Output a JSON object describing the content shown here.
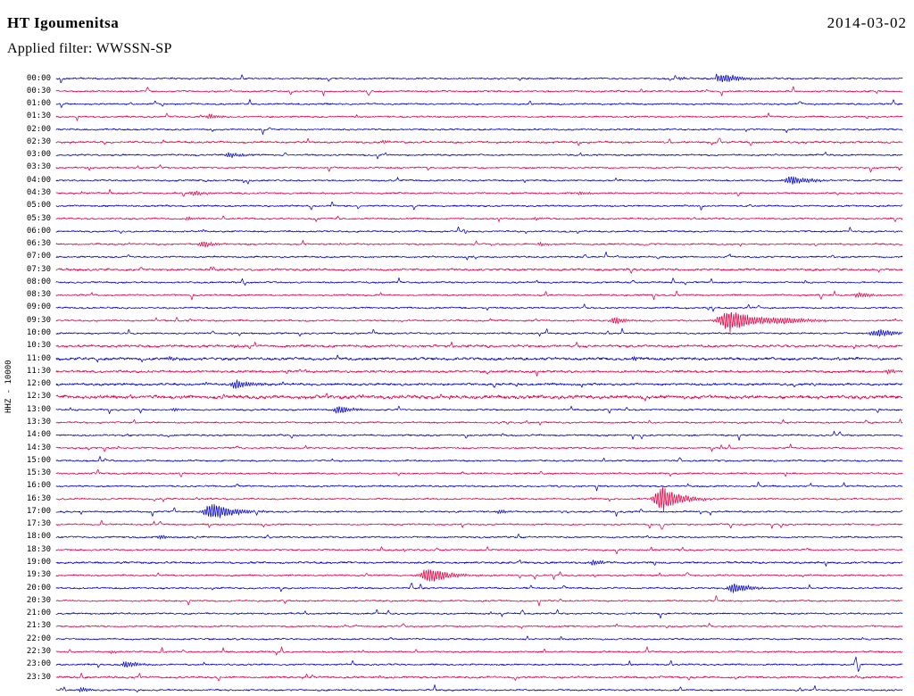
{
  "header": {
    "station": "HT Igoumenitsa",
    "date": "2014-03-02",
    "filter": "Applied filter: WWSSN-SP"
  },
  "axis": {
    "y_label": "HHZ - 10000"
  },
  "chart_data": {
    "type": "line",
    "subtype": "helicorder-seismogram",
    "title": "HT Igoumenitsa",
    "date": "2014-03-02",
    "filter": "WWSSN-SP",
    "channel": "HHZ",
    "gain_scale": 10000,
    "row_duration_minutes": 30,
    "x_range": [
      "00:00",
      "24:00"
    ],
    "colors": {
      "even": "#0000cd",
      "odd": "#e50045",
      "text": "#000000",
      "background": "#ffffff"
    },
    "layout": {
      "x0": 63,
      "x1": 1011,
      "y0": 88,
      "dy": 14.277,
      "legend": "none",
      "grid": false
    },
    "rows": [
      "00:00",
      "00:30",
      "01:00",
      "01:30",
      "02:00",
      "02:30",
      "03:00",
      "03:30",
      "04:00",
      "04:30",
      "05:00",
      "05:30",
      "06:00",
      "06:30",
      "07:00",
      "07:30",
      "08:00",
      "08:30",
      "09:00",
      "09:30",
      "10:00",
      "10:30",
      "11:00",
      "11:30",
      "12:00",
      "12:30",
      "13:00",
      "13:30",
      "14:00",
      "14:30",
      "15:00",
      "15:30",
      "16:00",
      "16:30",
      "17:00",
      "17:30",
      "18:00",
      "18:30",
      "19:00",
      "19:30",
      "20:00",
      "20:30",
      "21:00",
      "21:30",
      "22:00",
      "22:30",
      "23:00",
      "23:30",
      ""
    ],
    "noise_scale": {
      "02:30": 1.2,
      "07:30": 1.3,
      "10:30": 1.5,
      "11:00": 1.6,
      "11:30": 1.4,
      "12:00": 1.4,
      "12:30": 2.1,
      "19:00": 1.2,
      "23:30": 1.2
    },
    "events": [
      {
        "time": "00:00",
        "x": 0.788,
        "amp": 6,
        "w": 12,
        "type": "burst"
      },
      {
        "time": "00:00",
        "x": 0.737,
        "amp": 2,
        "w": 5,
        "type": "burst"
      },
      {
        "time": "00:30",
        "x": 0.108,
        "amp": 4,
        "type": "spike"
      },
      {
        "time": "00:30",
        "x": 0.369,
        "amp": -5,
        "type": "spike"
      },
      {
        "time": "01:00",
        "x": 0.879,
        "amp": 3,
        "type": "spike"
      },
      {
        "time": "01:30",
        "x": 0.182,
        "amp": 3,
        "w": 7,
        "type": "burst"
      },
      {
        "time": "02:00",
        "x": 0.253,
        "amp": 2.5,
        "type": "spike"
      },
      {
        "time": "02:30",
        "x": 0.387,
        "amp": 2.5,
        "w": 5,
        "type": "burst"
      },
      {
        "time": "02:30",
        "x": 0.784,
        "amp": 5,
        "type": "spike"
      },
      {
        "time": "03:00",
        "x": 0.206,
        "amp": 3.5,
        "w": 9,
        "type": "burst"
      },
      {
        "time": "03:00",
        "x": 0.271,
        "amp": 2.5,
        "type": "spike"
      },
      {
        "time": "03:30",
        "x": 0.123,
        "amp": 2.5,
        "type": "spike"
      },
      {
        "time": "04:00",
        "x": 0.87,
        "amp": 5,
        "w": 14,
        "type": "burst"
      },
      {
        "time": "04:30",
        "x": 0.163,
        "amp": 3.5,
        "w": 7,
        "type": "burst"
      },
      {
        "time": "04:30",
        "x": 0.619,
        "amp": 2.5,
        "w": 5,
        "type": "burst"
      },
      {
        "time": "05:00",
        "x": 0.82,
        "amp": 2,
        "type": "spike"
      },
      {
        "time": "05:30",
        "x": 0.155,
        "amp": 2.5,
        "w": 4,
        "type": "burst"
      },
      {
        "time": "05:30",
        "x": 0.566,
        "amp": 2,
        "w": 4,
        "type": "burst"
      },
      {
        "time": "06:00",
        "x": 0.482,
        "amp": 2.5,
        "type": "spike"
      },
      {
        "time": "06:30",
        "x": 0.174,
        "amp": 4,
        "w": 8,
        "type": "burst"
      },
      {
        "time": "06:30",
        "x": 0.573,
        "amp": 2.2,
        "w": 6,
        "type": "burst"
      },
      {
        "time": "07:00",
        "x": 0.625,
        "amp": 3,
        "type": "spike"
      },
      {
        "time": "07:00",
        "x": 0.711,
        "amp": -2.5,
        "type": "spike"
      },
      {
        "time": "07:30",
        "x": 0.1,
        "amp": 2.5,
        "type": "spike"
      },
      {
        "time": "08:00",
        "x": 0.682,
        "amp": 2.5,
        "type": "spike"
      },
      {
        "time": "08:30",
        "x": 0.949,
        "amp": 3.5,
        "w": 8,
        "type": "burst"
      },
      {
        "time": "09:00",
        "x": 0.83,
        "amp": 2.5,
        "type": "spike"
      },
      {
        "time": "09:30",
        "x": 0.661,
        "amp": 4.5,
        "w": 8,
        "type": "burst"
      },
      {
        "time": "09:30",
        "x": 0.796,
        "amp": 14,
        "w": 18,
        "type": "burst"
      },
      {
        "time": "09:30",
        "x": 0.862,
        "amp": 2.5,
        "w": 22,
        "type": "burst"
      },
      {
        "time": "10:00",
        "x": 0.185,
        "amp": 3,
        "type": "spike"
      },
      {
        "time": "10:00",
        "x": 0.973,
        "amp": 4,
        "w": 18,
        "type": "burst"
      },
      {
        "time": "10:30",
        "x": 0.21,
        "amp": 2.2,
        "w": 4,
        "type": "burst"
      },
      {
        "time": "11:00",
        "x": 0.134,
        "amp": 3,
        "w": 6,
        "type": "burst"
      },
      {
        "time": "11:00",
        "x": 0.683,
        "amp": 2.5,
        "w": 4,
        "type": "burst"
      },
      {
        "time": "11:30",
        "x": 0.983,
        "amp": 3,
        "w": 5,
        "type": "burst"
      },
      {
        "time": "12:00",
        "x": 0.214,
        "amp": 5,
        "w": 11,
        "type": "burst"
      },
      {
        "time": "13:00",
        "x": 0.14,
        "amp": 2.5,
        "w": 4,
        "type": "burst"
      },
      {
        "time": "13:00",
        "x": 0.334,
        "amp": 5,
        "w": 9,
        "type": "burst"
      },
      {
        "time": "13:30",
        "x": 0.957,
        "amp": 3,
        "type": "spike"
      },
      {
        "time": "14:00",
        "x": 0.926,
        "amp": 3.5,
        "type": "spike"
      },
      {
        "time": "14:30",
        "x": 0.214,
        "amp": 2.5,
        "type": "spike"
      },
      {
        "time": "15:00",
        "x": 0.737,
        "amp": 3,
        "type": "spike"
      },
      {
        "time": "15:30",
        "x": 0.48,
        "amp": 2,
        "type": "spike"
      },
      {
        "time": "16:00",
        "x": 0.214,
        "amp": 3,
        "type": "spike"
      },
      {
        "time": "16:30",
        "x": 0.716,
        "amp": 16,
        "w": 13,
        "type": "burst"
      },
      {
        "time": "17:00",
        "x": 0.185,
        "amp": 10,
        "w": 15,
        "type": "burst"
      },
      {
        "time": "17:00",
        "x": 0.524,
        "amp": 2.5,
        "w": 6,
        "type": "burst"
      },
      {
        "time": "17:30",
        "x": 0.716,
        "amp": -6,
        "type": "spike"
      },
      {
        "time": "17:30",
        "x": 0.123,
        "amp": 2.5,
        "type": "spike"
      },
      {
        "time": "18:00",
        "x": 0.123,
        "amp": 3,
        "w": 5,
        "type": "burst"
      },
      {
        "time": "18:00",
        "x": 0.25,
        "amp": 2.5,
        "type": "spike"
      },
      {
        "time": "18:30",
        "x": 0.45,
        "amp": 2,
        "type": "spike"
      },
      {
        "time": "19:00",
        "x": 0.635,
        "amp": 3.5,
        "w": 7,
        "type": "burst"
      },
      {
        "time": "19:30",
        "x": 0.44,
        "amp": 9,
        "w": 15,
        "type": "burst"
      },
      {
        "time": "19:30",
        "x": 0.746,
        "amp": 4,
        "type": "spike"
      },
      {
        "time": "20:00",
        "x": 0.801,
        "amp": 6,
        "w": 11,
        "type": "burst"
      },
      {
        "time": "20:00",
        "x": 0.6,
        "amp": 3,
        "type": "spike"
      },
      {
        "time": "20:30",
        "x": 0.596,
        "amp": 2.5,
        "type": "spike"
      },
      {
        "time": "21:00",
        "x": 0.551,
        "amp": 3.5,
        "type": "spike"
      },
      {
        "time": "21:30",
        "x": 0.41,
        "amp": 2.5,
        "type": "spike"
      },
      {
        "time": "21:30",
        "x": 0.55,
        "amp": -2.5,
        "type": "spike"
      },
      {
        "time": "22:00",
        "x": 0.396,
        "amp": 2,
        "type": "spike"
      },
      {
        "time": "22:30",
        "x": 0.065,
        "amp": 2,
        "w": 4,
        "type": "burst"
      },
      {
        "time": "23:00",
        "x": 0.083,
        "amp": 4,
        "w": 9,
        "type": "burst"
      },
      {
        "time": "23:00",
        "x": 0.945,
        "amp": 9,
        "type": "spike"
      },
      {
        "time": "23:00",
        "x": 0.948,
        "amp": -9,
        "type": "spike"
      },
      {
        "time": "23:30",
        "x": 0.303,
        "amp": 2,
        "type": "spike"
      },
      {
        "time": "",
        "x": 0.03,
        "amp": 3,
        "w": 5,
        "type": "burst"
      }
    ]
  }
}
